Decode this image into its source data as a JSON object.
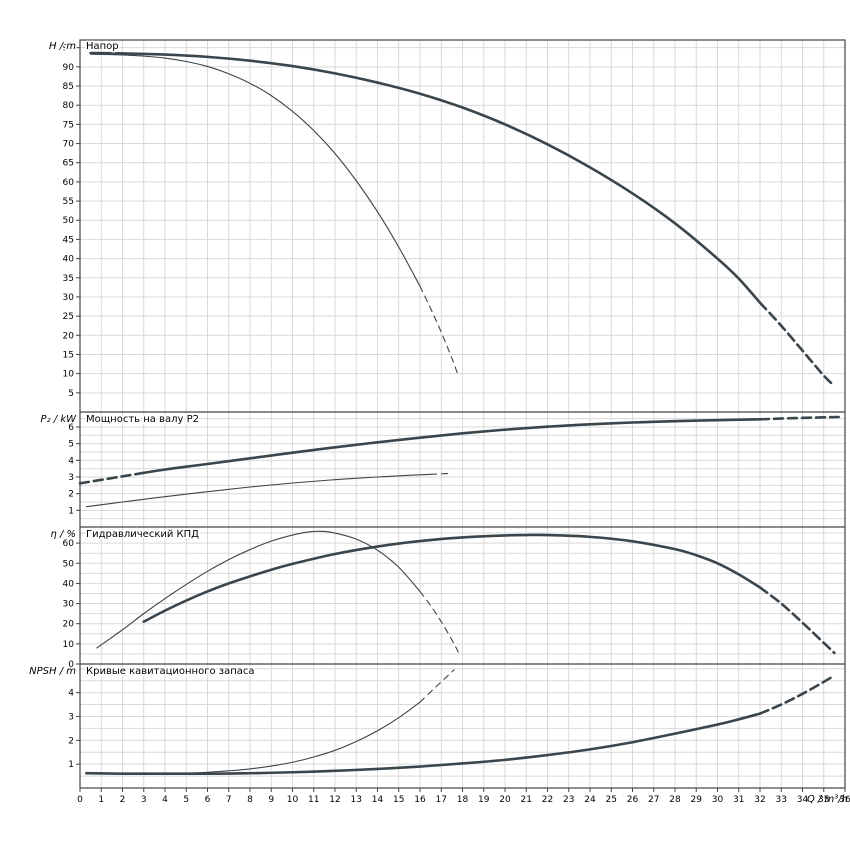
{
  "colors": {
    "curve": "#3a454c",
    "grid": "#d9d9d9",
    "axis": "#444444",
    "text": "#000000"
  },
  "chart_data": {
    "type": "line",
    "x_axis": {
      "min": 0,
      "max": 36,
      "tick_step": 1,
      "grid_step": 1,
      "label": "Q / m³/h"
    },
    "panels": [
      {
        "title": "Напор",
        "ylabel": "H / m",
        "ylim": [
          0,
          97
        ],
        "yticks": {
          "min": 5,
          "max": 95,
          "step": 5
        },
        "ygrid_step": 5,
        "series": [
          {
            "name": "head-curve-large",
            "thickness": "thick",
            "segments": [
              {
                "style": "solid",
                "points": [
                  [
                    0.5,
                    93.6
                  ],
                  [
                    2,
                    93.5
                  ],
                  [
                    4,
                    93.2
                  ],
                  [
                    6,
                    92.6
                  ],
                  [
                    8,
                    91.6
                  ],
                  [
                    10,
                    90.2
                  ],
                  [
                    12,
                    88.3
                  ],
                  [
                    14,
                    85.9
                  ],
                  [
                    16,
                    83
                  ],
                  [
                    18,
                    79.4
                  ],
                  [
                    20,
                    75
                  ],
                  [
                    22,
                    69.8
                  ],
                  [
                    24,
                    63.8
                  ],
                  [
                    26,
                    57
                  ],
                  [
                    28,
                    49.2
                  ],
                  [
                    30,
                    40
                  ],
                  [
                    31,
                    34.8
                  ],
                  [
                    32,
                    28.5
                  ]
                ]
              },
              {
                "style": "dashed",
                "points": [
                  [
                    32,
                    28.5
                  ],
                  [
                    33,
                    22.5
                  ],
                  [
                    34,
                    16
                  ],
                  [
                    35,
                    9.5
                  ],
                  [
                    35.5,
                    6.8
                  ]
                ]
              }
            ]
          },
          {
            "name": "head-curve-small",
            "thickness": "thin",
            "segments": [
              {
                "style": "solid",
                "points": [
                  [
                    0.5,
                    93.3
                  ],
                  [
                    2,
                    93.1
                  ],
                  [
                    3,
                    92.8
                  ],
                  [
                    4,
                    92.3
                  ],
                  [
                    5,
                    91.4
                  ],
                  [
                    6,
                    90.1
                  ],
                  [
                    7,
                    88.2
                  ],
                  [
                    8,
                    85.7
                  ],
                  [
                    9,
                    82.5
                  ],
                  [
                    10,
                    78.4
                  ],
                  [
                    11,
                    73.4
                  ],
                  [
                    12,
                    67.4
                  ],
                  [
                    13,
                    60.3
                  ],
                  [
                    14,
                    52.2
                  ],
                  [
                    15,
                    43
                  ],
                  [
                    16,
                    32.8
                  ]
                ]
              },
              {
                "style": "dashed",
                "points": [
                  [
                    16,
                    32.8
                  ],
                  [
                    16.5,
                    27
                  ],
                  [
                    17,
                    20.8
                  ],
                  [
                    17.5,
                    14
                  ],
                  [
                    17.8,
                    9.5
                  ]
                ]
              }
            ]
          }
        ]
      },
      {
        "title": "Мощность на валу P2",
        "ylabel": "P₂ / kW",
        "ylim": [
          0,
          6.9
        ],
        "yticks": {
          "min": 1,
          "max": 6,
          "step": 1
        },
        "ygrid_step": 0.5,
        "series": [
          {
            "name": "power-curve-large",
            "thickness": "thick",
            "segments": [
              {
                "style": "dashed",
                "points": [
                  [
                    0,
                    2.62
                  ],
                  [
                    1,
                    2.83
                  ],
                  [
                    2,
                    3.04
                  ],
                  [
                    3,
                    3.25
                  ]
                ]
              },
              {
                "style": "solid",
                "points": [
                  [
                    3,
                    3.25
                  ],
                  [
                    4,
                    3.45
                  ],
                  [
                    5,
                    3.62
                  ],
                  [
                    6,
                    3.78
                  ],
                  [
                    8,
                    4.12
                  ],
                  [
                    10,
                    4.46
                  ],
                  [
                    12,
                    4.78
                  ],
                  [
                    14,
                    5.08
                  ],
                  [
                    16,
                    5.36
                  ],
                  [
                    18,
                    5.62
                  ],
                  [
                    20,
                    5.84
                  ],
                  [
                    22,
                    6.02
                  ],
                  [
                    24,
                    6.16
                  ],
                  [
                    26,
                    6.27
                  ],
                  [
                    28,
                    6.35
                  ],
                  [
                    30,
                    6.41
                  ],
                  [
                    32,
                    6.46
                  ]
                ]
              },
              {
                "style": "dashed",
                "points": [
                  [
                    32,
                    6.46
                  ],
                  [
                    33.5,
                    6.53
                  ],
                  [
                    35,
                    6.58
                  ],
                  [
                    35.7,
                    6.6
                  ]
                ]
              }
            ]
          },
          {
            "name": "power-curve-small",
            "thickness": "thin",
            "segments": [
              {
                "style": "solid",
                "points": [
                  [
                    0.3,
                    1.22
                  ],
                  [
                    2,
                    1.5
                  ],
                  [
                    4,
                    1.82
                  ],
                  [
                    6,
                    2.12
                  ],
                  [
                    8,
                    2.4
                  ],
                  [
                    10,
                    2.64
                  ],
                  [
                    12,
                    2.84
                  ],
                  [
                    14,
                    3.0
                  ],
                  [
                    15.5,
                    3.1
                  ],
                  [
                    16.5,
                    3.16
                  ]
                ]
              },
              {
                "style": "dashed",
                "points": [
                  [
                    16.5,
                    3.16
                  ],
                  [
                    17.5,
                    3.22
                  ]
                ]
              }
            ]
          }
        ]
      },
      {
        "title": "Гидравлический КПД",
        "ylabel": "η / %",
        "ylim": [
          0,
          68
        ],
        "yticks": {
          "min": 0,
          "max": 60,
          "step": 10
        },
        "ygrid_step": 5,
        "series": [
          {
            "name": "efficiency-curve-large",
            "thickness": "thick",
            "segments": [
              {
                "style": "solid",
                "points": [
                  [
                    3,
                    21
                  ],
                  [
                    4,
                    26.5
                  ],
                  [
                    5,
                    31.5
                  ],
                  [
                    6,
                    36
                  ],
                  [
                    7,
                    40
                  ],
                  [
                    8,
                    43.5
                  ],
                  [
                    9,
                    46.8
                  ],
                  [
                    10,
                    49.7
                  ],
                  [
                    12,
                    54.6
                  ],
                  [
                    14,
                    58.3
                  ],
                  [
                    16,
                    61
                  ],
                  [
                    18,
                    62.8
                  ],
                  [
                    20,
                    63.8
                  ],
                  [
                    21,
                    64
                  ],
                  [
                    22,
                    64
                  ],
                  [
                    24,
                    63.1
                  ],
                  [
                    26,
                    60.9
                  ],
                  [
                    28,
                    57
                  ],
                  [
                    29,
                    54
                  ],
                  [
                    30,
                    50
                  ],
                  [
                    31,
                    44.5
                  ],
                  [
                    32,
                    38
                  ]
                ]
              },
              {
                "style": "dashed",
                "points": [
                  [
                    32,
                    38
                  ],
                  [
                    33,
                    30
                  ],
                  [
                    34,
                    20.5
                  ],
                  [
                    35,
                    10.5
                  ],
                  [
                    35.5,
                    5.5
                  ]
                ]
              }
            ]
          },
          {
            "name": "efficiency-curve-small",
            "thickness": "thin",
            "segments": [
              {
                "style": "solid",
                "points": [
                  [
                    0.8,
                    8
                  ],
                  [
                    2,
                    17
                  ],
                  [
                    3,
                    25
                  ],
                  [
                    4,
                    32.5
                  ],
                  [
                    5,
                    39.5
                  ],
                  [
                    6,
                    46
                  ],
                  [
                    7,
                    51.8
                  ],
                  [
                    8,
                    56.8
                  ],
                  [
                    9,
                    61
                  ],
                  [
                    10,
                    64
                  ],
                  [
                    10.8,
                    65.6
                  ],
                  [
                    11.5,
                    65.8
                  ],
                  [
                    12,
                    65
                  ],
                  [
                    13,
                    62
                  ],
                  [
                    14,
                    56.5
                  ],
                  [
                    15,
                    48
                  ],
                  [
                    16,
                    36
                  ]
                ]
              },
              {
                "style": "dashed",
                "points": [
                  [
                    16,
                    36
                  ],
                  [
                    16.5,
                    29
                  ],
                  [
                    17,
                    21
                  ],
                  [
                    17.5,
                    12
                  ],
                  [
                    17.8,
                    6
                  ]
                ]
              }
            ]
          }
        ]
      },
      {
        "title": "Кривые кавитационного запаса",
        "ylabel": "NPSH / m",
        "ylim": [
          0,
          5.2
        ],
        "yticks": {
          "min": 1,
          "max": 4,
          "step": 1
        },
        "ygrid_step": 0.5,
        "series": [
          {
            "name": "npsh-curve-large",
            "thickness": "thick",
            "segments": [
              {
                "style": "solid",
                "points": [
                  [
                    0.3,
                    0.62
                  ],
                  [
                    2,
                    0.6
                  ],
                  [
                    4,
                    0.6
                  ],
                  [
                    6,
                    0.6
                  ],
                  [
                    8,
                    0.62
                  ],
                  [
                    10,
                    0.66
                  ],
                  [
                    12,
                    0.72
                  ],
                  [
                    14,
                    0.8
                  ],
                  [
                    16,
                    0.9
                  ],
                  [
                    18,
                    1.03
                  ],
                  [
                    20,
                    1.18
                  ],
                  [
                    22,
                    1.38
                  ],
                  [
                    24,
                    1.62
                  ],
                  [
                    26,
                    1.92
                  ],
                  [
                    28,
                    2.28
                  ],
                  [
                    30,
                    2.66
                  ],
                  [
                    31,
                    2.88
                  ],
                  [
                    32,
                    3.12
                  ]
                ]
              },
              {
                "style": "dashed",
                "points": [
                  [
                    32,
                    3.12
                  ],
                  [
                    33,
                    3.5
                  ],
                  [
                    34,
                    3.95
                  ],
                  [
                    35,
                    4.45
                  ],
                  [
                    35.5,
                    4.72
                  ]
                ]
              }
            ]
          },
          {
            "name": "npsh-curve-small",
            "thickness": "thin",
            "segments": [
              {
                "style": "solid",
                "points": [
                  [
                    0.3,
                    0.62
                  ],
                  [
                    2,
                    0.6
                  ],
                  [
                    4,
                    0.6
                  ],
                  [
                    5,
                    0.62
                  ],
                  [
                    6,
                    0.66
                  ],
                  [
                    7,
                    0.72
                  ],
                  [
                    8,
                    0.8
                  ],
                  [
                    9,
                    0.92
                  ],
                  [
                    10,
                    1.08
                  ],
                  [
                    11,
                    1.3
                  ],
                  [
                    12,
                    1.58
                  ],
                  [
                    13,
                    1.95
                  ],
                  [
                    14,
                    2.4
                  ],
                  [
                    15,
                    2.95
                  ],
                  [
                    16,
                    3.6
                  ]
                ]
              },
              {
                "style": "dashed",
                "points": [
                  [
                    16,
                    3.6
                  ],
                  [
                    16.7,
                    4.2
                  ],
                  [
                    17.3,
                    4.7
                  ],
                  [
                    17.6,
                    4.95
                  ]
                ]
              }
            ]
          }
        ]
      }
    ]
  }
}
